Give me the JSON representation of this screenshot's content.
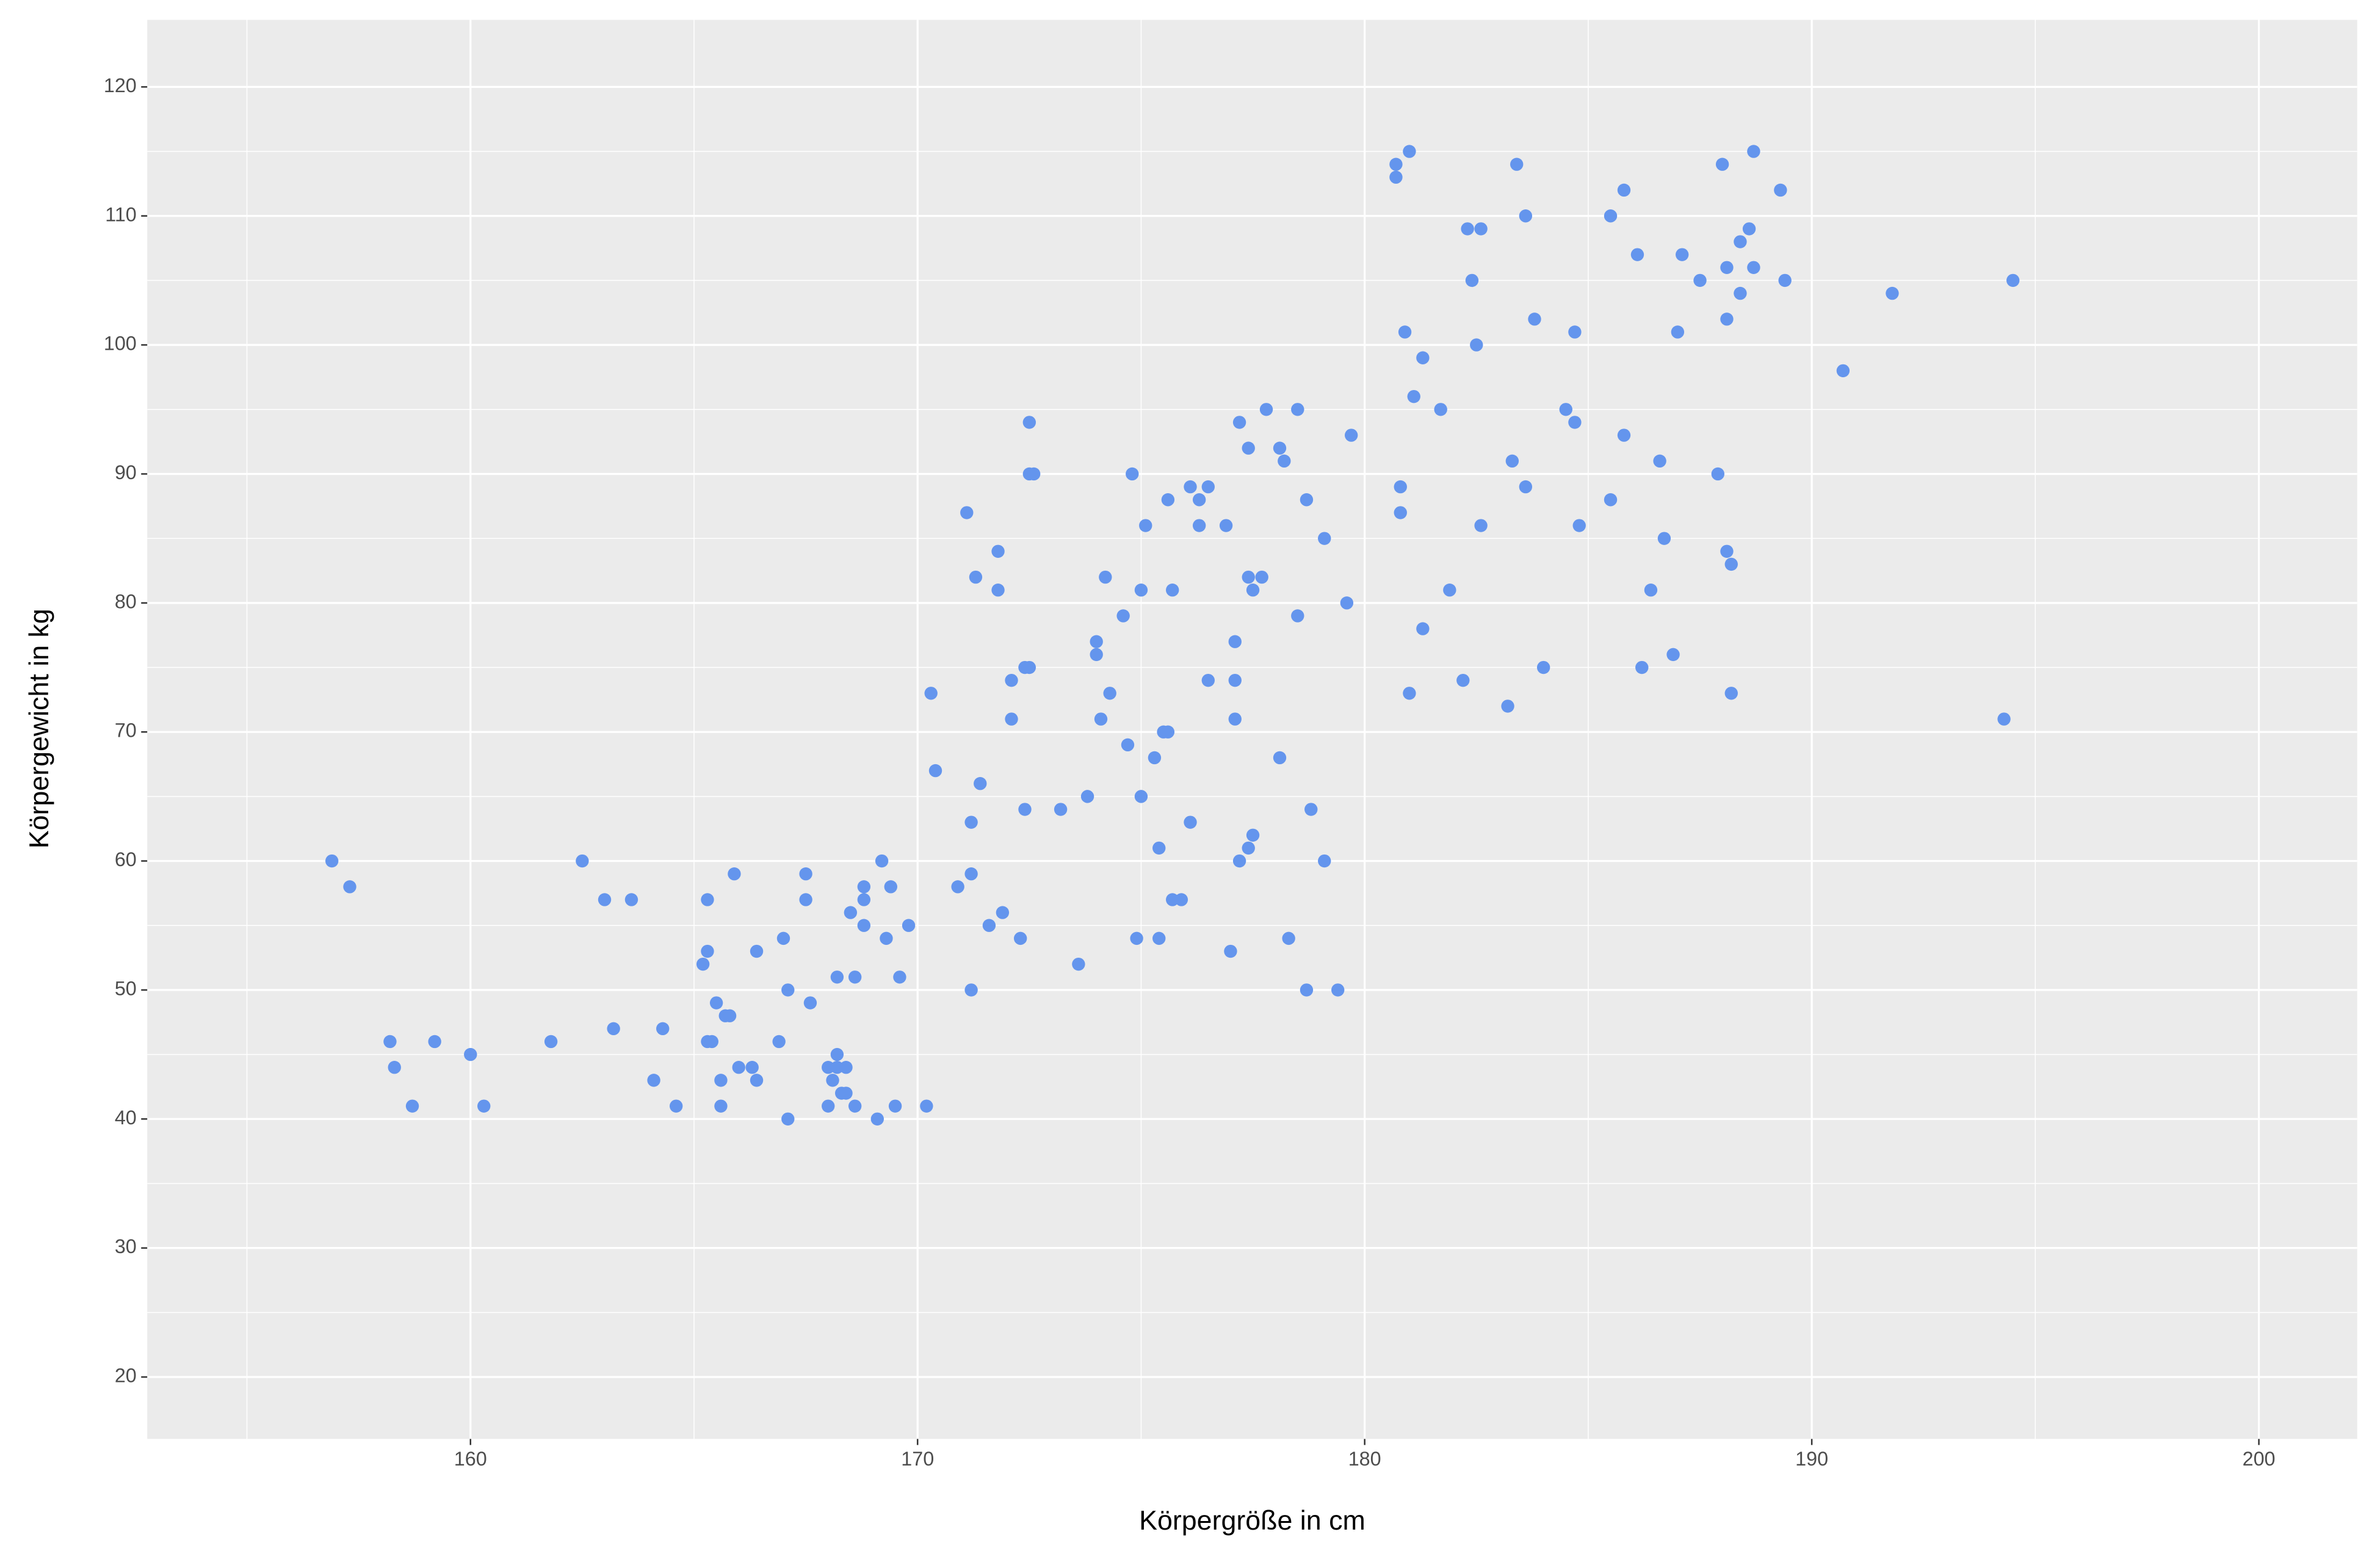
{
  "chart_data": {
    "type": "scatter",
    "x_label": "Körpergröße in cm",
    "y_label": "Körpergewicht in kg",
    "xlim": [
      152.77,
      202.2
    ],
    "ylim": [
      15.2,
      125.2
    ],
    "xticks": [
      160,
      170,
      180,
      190,
      200
    ],
    "yticks": [
      20,
      30,
      40,
      50,
      60,
      70,
      80,
      90,
      100,
      110,
      120
    ],
    "x_minor_breaks": [
      155,
      165,
      175,
      185,
      195
    ],
    "y_minor_breaks": [
      25,
      35,
      45,
      55,
      65,
      75,
      85,
      95,
      105,
      115
    ],
    "grid": true,
    "background": "#ebebeb",
    "series": [
      {
        "color": "#6495ed",
        "x": [
          156.9,
          157.3,
          158.2,
          158.3,
          158.7,
          159.2,
          160.0,
          160.3,
          161.8,
          162.5,
          163.0,
          163.2,
          163.6,
          164.1,
          164.3,
          164.6,
          165.2,
          165.3,
          165.3,
          165.3,
          165.4,
          165.5,
          165.6,
          165.6,
          165.7,
          165.8,
          165.9,
          166.0,
          166.3,
          166.4,
          166.4,
          166.9,
          167.0,
          167.1,
          167.1,
          167.5,
          167.5,
          167.6,
          168.0,
          168.0,
          168.1,
          168.2,
          168.2,
          168.2,
          168.3,
          168.4,
          168.4,
          168.5,
          168.6,
          168.6,
          168.8,
          168.8,
          168.8,
          169.1,
          169.2,
          169.3,
          169.4,
          169.5,
          169.6,
          169.8,
          170.2,
          170.3,
          170.4,
          170.9,
          171.1,
          171.2,
          171.2,
          171.2,
          171.3,
          171.4,
          171.6,
          171.8,
          171.8,
          171.9,
          172.1,
          172.1,
          172.3,
          172.4,
          172.4,
          172.5,
          172.5,
          172.5,
          172.6,
          173.2,
          173.6,
          173.8,
          174.0,
          174.0,
          174.1,
          174.2,
          174.3,
          174.6,
          174.7,
          174.8,
          174.9,
          175.0,
          175.0,
          175.1,
          175.3,
          175.4,
          175.4,
          175.5,
          175.6,
          175.6,
          175.7,
          175.7,
          175.9,
          176.1,
          176.1,
          176.3,
          176.3,
          176.5,
          176.5,
          176.9,
          177.0,
          177.1,
          177.1,
          177.1,
          177.2,
          177.2,
          177.4,
          177.4,
          177.4,
          177.5,
          177.5,
          177.7,
          177.8,
          178.1,
          178.1,
          178.2,
          178.3,
          178.5,
          178.5,
          178.7,
          178.7,
          178.8,
          179.1,
          179.1,
          179.4,
          179.6,
          179.7,
          180.7,
          180.7,
          180.8,
          180.8,
          180.9,
          181.0,
          181.0,
          181.1,
          181.3,
          181.3,
          181.7,
          181.9,
          182.2,
          182.3,
          182.4,
          182.5,
          182.6,
          182.6,
          183.2,
          183.3,
          183.4,
          183.6,
          183.6,
          183.8,
          184.0,
          184.5,
          184.7,
          184.7,
          184.8,
          185.5,
          185.5,
          185.8,
          185.8,
          186.1,
          186.2,
          186.4,
          186.6,
          186.7,
          186.9,
          187.0,
          187.1,
          187.5,
          187.9,
          188.0,
          188.1,
          188.1,
          188.1,
          188.2,
          188.2,
          188.4,
          188.4,
          188.6,
          188.7,
          188.7,
          189.3,
          189.4,
          190.7,
          191.8,
          194.3,
          194.5
        ],
        "values": [
          60,
          58,
          46,
          44,
          41,
          46,
          45,
          41,
          46,
          60,
          57,
          47,
          57,
          43,
          47,
          41,
          52,
          53,
          57,
          46,
          46,
          49,
          41,
          43,
          48,
          48,
          59,
          44,
          44,
          43,
          53,
          46,
          54,
          50,
          40,
          59,
          57,
          49,
          41,
          44,
          43,
          44,
          45,
          51,
          42,
          44,
          42,
          56,
          51,
          41,
          58,
          57,
          55,
          40,
          60,
          54,
          58,
          41,
          51,
          55,
          41,
          73,
          67,
          58,
          87,
          63,
          59,
          50,
          82,
          66,
          55,
          84,
          81,
          56,
          74,
          71,
          54,
          64,
          75,
          75,
          94,
          90,
          90,
          64,
          52,
          65,
          77,
          76,
          71,
          82,
          73,
          79,
          69,
          90,
          54,
          81,
          65,
          86,
          68,
          61,
          54,
          70,
          70,
          88,
          57,
          81,
          57,
          89,
          63,
          88,
          86,
          74,
          89,
          86,
          53,
          71,
          74,
          77,
          94,
          60,
          61,
          92,
          82,
          62,
          81,
          82,
          95,
          92,
          68,
          91,
          54,
          79,
          95,
          50,
          88,
          64,
          85,
          60,
          50,
          80,
          93,
          113,
          114,
          87,
          89,
          101,
          115,
          73,
          96,
          99,
          78,
          95,
          81,
          74,
          109,
          105,
          100,
          109,
          86,
          72,
          91,
          114,
          110,
          89,
          102,
          75,
          95,
          94,
          101,
          86,
          110,
          88,
          112,
          93,
          107,
          75,
          81,
          91,
          85,
          76,
          101,
          107,
          105,
          90,
          114,
          102,
          106,
          84,
          73,
          83,
          108,
          104,
          109,
          115,
          106,
          112,
          105,
          98,
          104,
          71,
          105
        ]
      }
    ]
  }
}
